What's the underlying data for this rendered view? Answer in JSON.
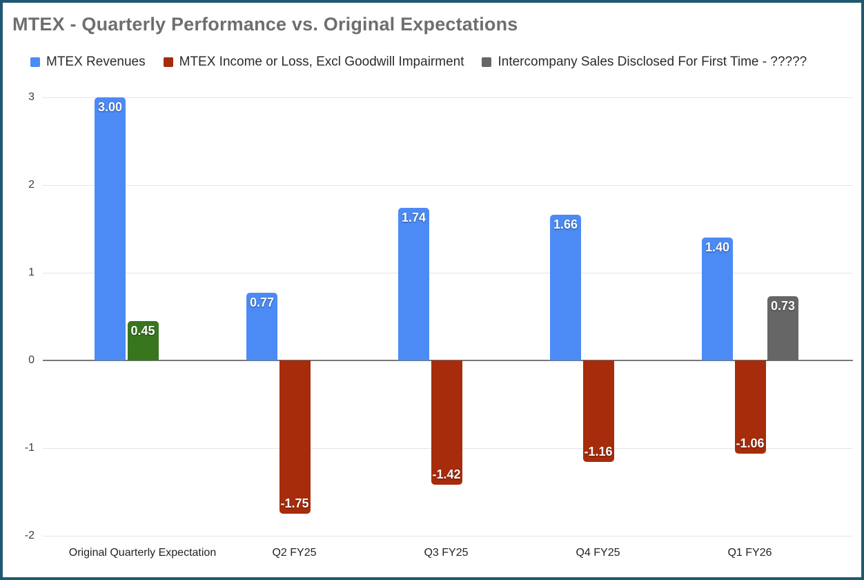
{
  "title": "MTEX - Quarterly Performance vs. Original Expectations",
  "legend": [
    {
      "label": "MTEX Revenues",
      "color": "#4c8bf5"
    },
    {
      "label": "MTEX Income or Loss, Excl Goodwill Impairment",
      "color": "#a72c0b"
    },
    {
      "label": "Intercompany Sales Disclosed For First Time - ?????",
      "color": "#666666"
    }
  ],
  "chart_data": {
    "type": "bar",
    "title": "MTEX - Quarterly Performance vs. Original Expectations",
    "categories": [
      "Original Quarterly Expectation",
      "Q2 FY25",
      "Q3 FY25",
      "Q4 FY25",
      "Q1 FY26"
    ],
    "series": [
      {
        "name": "MTEX Revenues",
        "color": "#4c8bf5",
        "values": [
          3.0,
          0.77,
          1.74,
          1.66,
          1.4
        ],
        "labels": [
          "3.00",
          "0.77",
          "1.74",
          "1.66",
          "1.40"
        ]
      },
      {
        "name": "MTEX Income or Loss, Excl Goodwill Impairment",
        "color": "#a72c0b",
        "values": [
          0.45,
          -1.75,
          -1.42,
          -1.16,
          -1.06
        ],
        "labels": [
          "0.45",
          "-1.75",
          "-1.42",
          "-1.16",
          "-1.06"
        ],
        "point_colors": {
          "0": "#38761d"
        }
      },
      {
        "name": "Intercompany Sales Disclosed For First Time - ?????",
        "color": "#666666",
        "values": [
          null,
          null,
          null,
          null,
          0.73
        ],
        "labels": [
          null,
          null,
          null,
          null,
          "0.73"
        ]
      }
    ],
    "ylim": [
      -2,
      3
    ],
    "yticks": [
      3,
      2,
      1,
      0,
      -1,
      -2
    ],
    "grid": true,
    "legend_position": "top",
    "value_label_format": "2dp"
  },
  "colors": {
    "frame_border": "#20596f",
    "background": "#ffffff",
    "title_text": "#6e6e6e",
    "legend_text": "#2b2b2b",
    "axis_tick_text": "#3c3c3c",
    "category_label_text": "#222222",
    "gridline": "#e4e4e4",
    "zero_line": "#777777",
    "bar_value_label_text": "#ffffff",
    "revenue_blue": "#4c8bf5",
    "loss_red": "#a72c0b",
    "expected_income_green": "#38761d",
    "intercompany_gray": "#666666"
  }
}
